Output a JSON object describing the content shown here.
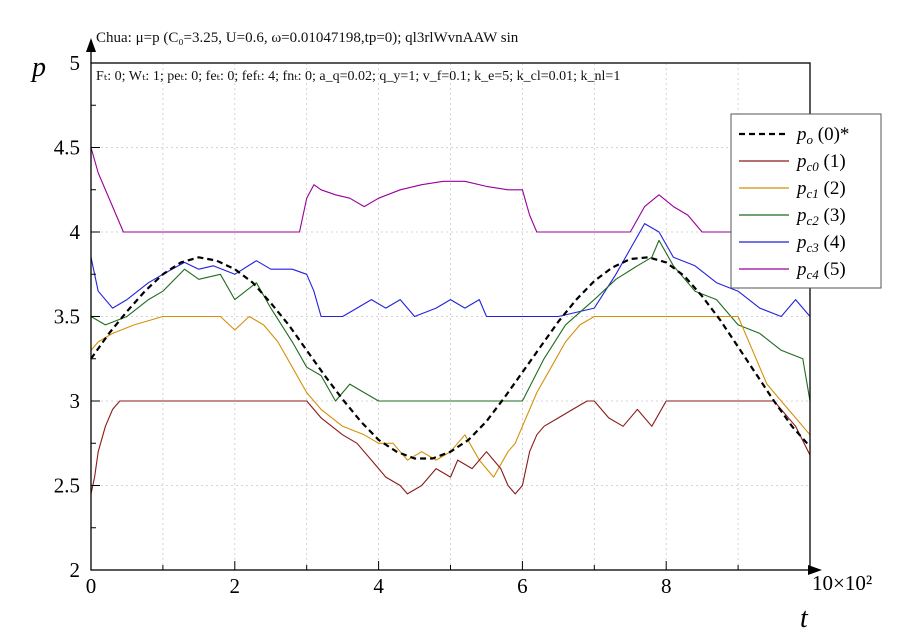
{
  "chart_data": {
    "type": "line",
    "title": "Chua: μ=p (C₀=3.25, U=0.6, ω=0.01047198,tp=0); ql3rlWvnAAW sin",
    "subtitle": "Fₜ: 0; Wₜ: 1; peₜ: 0; feₜ: 0; fefₜ: 4; fnₜ: 0; a_q=0.02; q_y=1; v_f=0.1; k_e=5; k_cl=0.01; k_nl=1",
    "xlabel": "t",
    "ylabel": "p",
    "x_multiplier_label": "×10²",
    "x_multiplier_base": "10",
    "xlim": [
      0,
      10
    ],
    "ylim": [
      2,
      5
    ],
    "x_ticks": [
      "0",
      "2",
      "4",
      "6",
      "8"
    ],
    "y_ticks": [
      "2",
      "2.5",
      "3",
      "3.5",
      "4",
      "4.5",
      "5"
    ],
    "grid": true,
    "legend_position": "top-right",
    "series": [
      {
        "name": "p_o (0)*",
        "legend_main": "p",
        "legend_sub": "o",
        "legend_suffix": " (0)*",
        "color": "#000000",
        "dash": "6,4",
        "x": [
          0,
          0.25,
          0.5,
          0.75,
          1,
          1.25,
          1.5,
          1.75,
          2,
          2.25,
          2.5,
          2.75,
          3,
          3.25,
          3.5,
          3.75,
          4,
          4.25,
          4.5,
          4.75,
          5,
          5.25,
          5.5,
          5.75,
          6,
          6.25,
          6.5,
          6.75,
          7,
          7.25,
          7.5,
          7.75,
          8,
          8.25,
          8.5,
          8.75,
          9,
          9.25,
          9.5,
          9.75,
          10
        ],
        "y": [
          3.25,
          3.4,
          3.53,
          3.65,
          3.75,
          3.82,
          3.85,
          3.83,
          3.78,
          3.7,
          3.58,
          3.45,
          3.3,
          3.15,
          3.01,
          2.88,
          2.77,
          2.7,
          2.66,
          2.66,
          2.7,
          2.77,
          2.88,
          3.02,
          3.17,
          3.32,
          3.47,
          3.6,
          3.71,
          3.79,
          3.84,
          3.85,
          3.82,
          3.74,
          3.62,
          3.48,
          3.32,
          3.16,
          3.0,
          2.85,
          2.73
        ]
      },
      {
        "name": "p_c0 (1)",
        "legend_main": "p",
        "legend_sub": "c0",
        "legend_suffix": " (1)",
        "color": "#8b1a1a",
        "x": [
          0,
          0.05,
          0.1,
          0.2,
          0.3,
          0.4,
          0.6,
          1,
          2,
          3,
          3.2,
          3.5,
          3.7,
          3.9,
          4.1,
          4.3,
          4.4,
          4.6,
          4.8,
          5.0,
          5.1,
          5.3,
          5.5,
          5.6,
          5.7,
          5.8,
          5.9,
          6.0,
          6.1,
          6.2,
          6.3,
          6.5,
          6.7,
          6.9,
          7.0,
          7.2,
          7.4,
          7.6,
          7.8,
          8.0,
          8.2,
          8.5,
          9.0,
          9.5,
          9.8,
          10
        ],
        "y": [
          2.45,
          2.55,
          2.7,
          2.85,
          2.95,
          3.0,
          3.0,
          3.0,
          3.0,
          3.0,
          2.9,
          2.8,
          2.75,
          2.65,
          2.55,
          2.5,
          2.45,
          2.5,
          2.6,
          2.55,
          2.65,
          2.6,
          2.7,
          2.65,
          2.6,
          2.5,
          2.45,
          2.5,
          2.7,
          2.8,
          2.85,
          2.9,
          2.95,
          3.0,
          3.0,
          2.9,
          2.85,
          2.95,
          2.85,
          3.0,
          3.0,
          3.0,
          3.0,
          3.0,
          2.85,
          2.68
        ]
      },
      {
        "name": "p_c1 (2)",
        "legend_main": "p",
        "legend_sub": "c1",
        "legend_suffix": " (2)",
        "color": "#d4900a",
        "x": [
          0,
          0.1,
          0.3,
          0.6,
          1,
          1.3,
          1.5,
          1.8,
          2.0,
          2.2,
          2.4,
          2.6,
          2.8,
          3.0,
          3.2,
          3.5,
          3.8,
          4.0,
          4.2,
          4.4,
          4.6,
          4.8,
          5.0,
          5.2,
          5.4,
          5.6,
          5.8,
          5.9,
          6.0,
          6.2,
          6.4,
          6.6,
          6.8,
          7.0,
          7.5,
          8.0,
          8.5,
          9.0,
          9.2,
          9.4,
          9.6,
          9.8,
          10
        ],
        "y": [
          3.3,
          3.35,
          3.4,
          3.45,
          3.5,
          3.5,
          3.5,
          3.5,
          3.42,
          3.5,
          3.45,
          3.35,
          3.2,
          3.05,
          2.95,
          2.85,
          2.8,
          2.75,
          2.75,
          2.65,
          2.7,
          2.65,
          2.7,
          2.8,
          2.65,
          2.55,
          2.7,
          2.75,
          2.85,
          3.05,
          3.2,
          3.35,
          3.45,
          3.5,
          3.5,
          3.5,
          3.5,
          3.5,
          3.3,
          3.1,
          3.0,
          2.9,
          2.8
        ]
      },
      {
        "name": "p_c2 (3)",
        "legend_main": "p",
        "legend_sub": "c2",
        "legend_suffix": " (3)",
        "color": "#1f6b1f",
        "x": [
          0,
          0.2,
          0.5,
          0.8,
          1.0,
          1.3,
          1.5,
          1.8,
          2.0,
          2.3,
          2.5,
          2.8,
          3.0,
          3.2,
          3.4,
          3.6,
          3.8,
          4.0,
          4.5,
          5.0,
          5.5,
          6.0,
          6.3,
          6.6,
          7.0,
          7.3,
          7.6,
          7.8,
          7.9,
          8.1,
          8.4,
          8.7,
          9.0,
          9.3,
          9.6,
          9.9,
          10
        ],
        "y": [
          3.5,
          3.45,
          3.5,
          3.6,
          3.65,
          3.78,
          3.72,
          3.75,
          3.6,
          3.7,
          3.55,
          3.35,
          3.2,
          3.15,
          3.0,
          3.1,
          3.05,
          3.0,
          3.0,
          3.0,
          3.0,
          3.0,
          3.25,
          3.45,
          3.6,
          3.72,
          3.8,
          3.85,
          3.95,
          3.8,
          3.65,
          3.6,
          3.45,
          3.4,
          3.3,
          3.25,
          3.0
        ]
      },
      {
        "name": "p_c3 (4)",
        "legend_main": "p",
        "legend_sub": "c3",
        "legend_suffix": " (4)",
        "color": "#2222dd",
        "x": [
          0,
          0.1,
          0.3,
          0.5,
          0.8,
          1.0,
          1.3,
          1.5,
          1.7,
          2.0,
          2.3,
          2.5,
          2.8,
          3.0,
          3.1,
          3.2,
          3.5,
          3.7,
          3.9,
          4.1,
          4.3,
          4.5,
          4.8,
          5.0,
          5.2,
          5.4,
          5.5,
          6.0,
          6.5,
          7.0,
          7.3,
          7.5,
          7.7,
          7.9,
          8.1,
          8.4,
          8.7,
          9.0,
          9.3,
          9.6,
          9.8,
          10
        ],
        "y": [
          3.85,
          3.65,
          3.55,
          3.6,
          3.7,
          3.75,
          3.82,
          3.78,
          3.8,
          3.75,
          3.83,
          3.78,
          3.78,
          3.75,
          3.65,
          3.5,
          3.5,
          3.55,
          3.6,
          3.55,
          3.6,
          3.5,
          3.55,
          3.6,
          3.55,
          3.6,
          3.5,
          3.5,
          3.5,
          3.55,
          3.75,
          3.9,
          4.05,
          4.0,
          3.85,
          3.8,
          3.7,
          3.65,
          3.55,
          3.5,
          3.6,
          3.5
        ]
      },
      {
        "name": "p_c4 (5)",
        "legend_main": "p",
        "legend_sub": "c4",
        "legend_suffix": " (5)",
        "color": "#990099",
        "x": [
          0,
          0.1,
          0.3,
          0.45,
          0.6,
          1.0,
          1.5,
          2.0,
          2.5,
          2.9,
          3.0,
          3.1,
          3.2,
          3.4,
          3.6,
          3.8,
          4.0,
          4.3,
          4.6,
          4.9,
          5.2,
          5.5,
          5.8,
          6.0,
          6.1,
          6.2,
          6.5,
          7.0,
          7.5,
          7.7,
          7.9,
          8.1,
          8.3,
          8.5,
          9.0,
          9.5,
          10
        ],
        "y": [
          4.5,
          4.35,
          4.15,
          4.0,
          4.0,
          4.0,
          4.0,
          4.0,
          4.0,
          4.0,
          4.2,
          4.28,
          4.25,
          4.22,
          4.2,
          4.15,
          4.2,
          4.25,
          4.28,
          4.3,
          4.3,
          4.27,
          4.25,
          4.25,
          4.1,
          4.0,
          4.0,
          4.0,
          4.0,
          4.15,
          4.22,
          4.15,
          4.1,
          4.0,
          4.0,
          4.0,
          4.0
        ]
      }
    ]
  }
}
